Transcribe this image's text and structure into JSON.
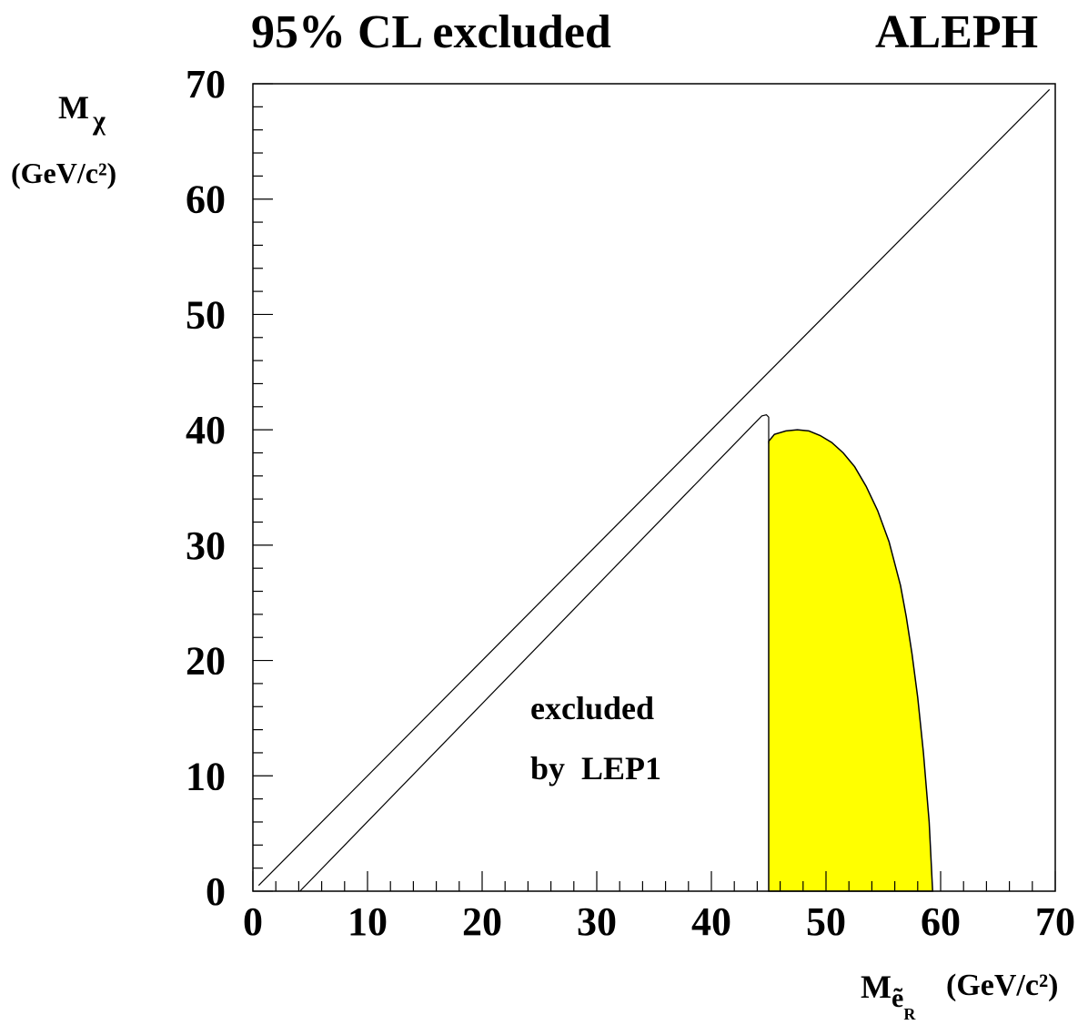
{
  "header": {
    "title": "95% CL excluded",
    "experiment": "ALEPH"
  },
  "axes": {
    "y_label_main": "M",
    "y_label_sub": "χ",
    "y_label_unit": "(GeV/c²)",
    "x_label_main": "M",
    "x_label_sub": "ẽ",
    "x_label_subsub": "R",
    "x_label_unit": "(GeV/c²)"
  },
  "annotation": {
    "line1": "excluded",
    "line2": "by  LEP1"
  },
  "colors": {
    "fill": "#ffff00",
    "line": "#000000",
    "background": "#ffffff"
  },
  "chart_data": {
    "type": "area",
    "xlim": [
      0,
      70
    ],
    "ylim": [
      0,
      70
    ],
    "x_ticks": [
      0,
      10,
      20,
      30,
      40,
      50,
      60,
      70
    ],
    "y_ticks": [
      0,
      10,
      20,
      30,
      40,
      50,
      60,
      70
    ],
    "x_tick_labels": [
      "0",
      "10",
      "20",
      "30",
      "40",
      "50",
      "60",
      "70"
    ],
    "y_tick_labels": [
      "0",
      "10",
      "20",
      "30",
      "40",
      "50",
      "60",
      "70"
    ],
    "grid": false,
    "series": [
      {
        "kind": "line",
        "x": [
          0.5,
          69.5
        ],
        "y": [
          0.5,
          69.5
        ]
      },
      {
        "kind": "line",
        "x": [
          4.1,
          44.4,
          44.8,
          45.0,
          45.0
        ],
        "y": [
          0.0,
          41.2,
          41.3,
          41.1,
          38.8
        ]
      },
      {
        "kind": "fill",
        "x": [
          45.0,
          45.0,
          45.5,
          46.5,
          47.5,
          48.5,
          49.5,
          50.5,
          51.5,
          52.5,
          53.5,
          54.5,
          55.5,
          56.5,
          57.0,
          57.5,
          58.0,
          58.5,
          59.0,
          59.3,
          45.0
        ],
        "y": [
          0.0,
          39.0,
          39.6,
          39.9,
          40.0,
          39.9,
          39.5,
          38.9,
          38.0,
          36.8,
          35.1,
          33.0,
          30.3,
          26.5,
          23.8,
          20.6,
          16.8,
          12.0,
          6.0,
          0.0,
          0.0
        ]
      }
    ]
  }
}
